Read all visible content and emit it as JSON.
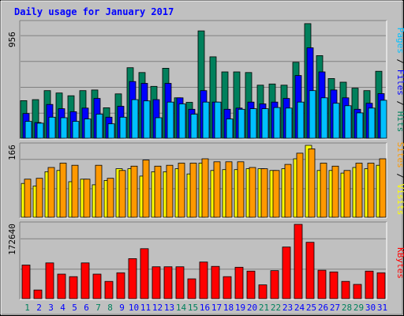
{
  "chart_data": {
    "type": "bar",
    "title": "Daily usage for January 2017",
    "categories": [
      "1",
      "2",
      "3",
      "4",
      "5",
      "6",
      "7",
      "8",
      "9",
      "10",
      "11",
      "12",
      "13",
      "14",
      "15",
      "16",
      "17",
      "18",
      "19",
      "20",
      "21",
      "22",
      "23",
      "24",
      "25",
      "26",
      "27",
      "28",
      "29",
      "30",
      "31"
    ],
    "weekend_days": [
      "1",
      "7",
      "8",
      "14",
      "15",
      "21",
      "22",
      "28",
      "29"
    ],
    "panels": [
      {
        "id": "top",
        "max_label": "956",
        "ylim": [
          0,
          956
        ],
        "ylabel_parts": [
          "Pages",
          "Files",
          "Hits"
        ],
        "series": [
          {
            "name": "Hits",
            "color": "#00805c",
            "values": [
              312,
              320,
              395,
              375,
              352,
              395,
              400,
              253,
              368,
              585,
              545,
              430,
              580,
              335,
              298,
              890,
              675,
              550,
              550,
              545,
              440,
              450,
              440,
              630,
              950,
              685,
              495,
              465,
              415,
              395,
              555
            ]
          },
          {
            "name": "Files",
            "color": "#0000ff",
            "values": [
              205,
              130,
              280,
              245,
              220,
              250,
              330,
              175,
              265,
              470,
              455,
              320,
              455,
              335,
              240,
              395,
              300,
              240,
              250,
              300,
              285,
              300,
              330,
              520,
              750,
              550,
              400,
              335,
              240,
              290,
              370
            ]
          },
          {
            "name": "Pages",
            "color": "#00c0ff",
            "values": [
              140,
              125,
              175,
              170,
              140,
              160,
              200,
              120,
              175,
              320,
              310,
              170,
              300,
              285,
              200,
              300,
              300,
              160,
              240,
              245,
              245,
              255,
              250,
              300,
              395,
              335,
              290,
              270,
              210,
              250,
              315
            ]
          }
        ]
      },
      {
        "id": "middle",
        "max_label": "166",
        "ylim": [
          0,
          166
        ],
        "ylabel_parts": [
          "Sites",
          "Visits"
        ],
        "series": [
          {
            "name": "Visits",
            "color": "#ffff00",
            "values": [
              78,
              72,
              105,
              108,
              82,
              88,
              75,
              85,
              112,
              112,
              95,
              105,
              105,
              112,
              100,
              125,
              108,
              110,
              110,
              112,
              112,
              108,
              112,
              135,
              168,
              108,
              108,
              102,
              115,
              112,
              120
            ]
          },
          {
            "name": "Sites",
            "color": "#ff9900",
            "values": [
              88,
              90,
              115,
              125,
              120,
              88,
              120,
              90,
              108,
              118,
              132,
              118,
              120,
              125,
              125,
              135,
              128,
              128,
              128,
              115,
              112,
              108,
              122,
              148,
              158,
              125,
              118,
              108,
              125,
              125,
              135
            ]
          }
        ]
      },
      {
        "id": "bottom",
        "max_label": "172640",
        "ylim": [
          0,
          172640
        ],
        "ylabel_parts": [
          "KBytes"
        ],
        "series": [
          {
            "name": "KBytes",
            "color": "#ff0000",
            "values": [
              78000,
              20000,
              83000,
              57000,
              51000,
              83000,
              57000,
              40000,
              60000,
              93000,
              116000,
              74000,
              74000,
              74000,
              46000,
              85000,
              75000,
              51000,
              73000,
              64000,
              32000,
              65000,
              120000,
              179000,
              131000,
              66000,
              62000,
              40000,
              33000,
              64000,
              60000
            ]
          }
        ]
      }
    ],
    "colors": {
      "background": "#c0c0c0",
      "plot": "#c0c0c0",
      "title": "#0000ff",
      "axis_text": "#000000",
      "weekday_label": "#0000ff",
      "weekend_label": "#00805c",
      "label_pages": "#00c0ff",
      "label_files": "#0000ff",
      "label_hits": "#00805c",
      "label_sites": "#ff9900",
      "label_visits": "#ffff00",
      "label_kbytes": "#ff0000",
      "separator": "#000000"
    }
  }
}
